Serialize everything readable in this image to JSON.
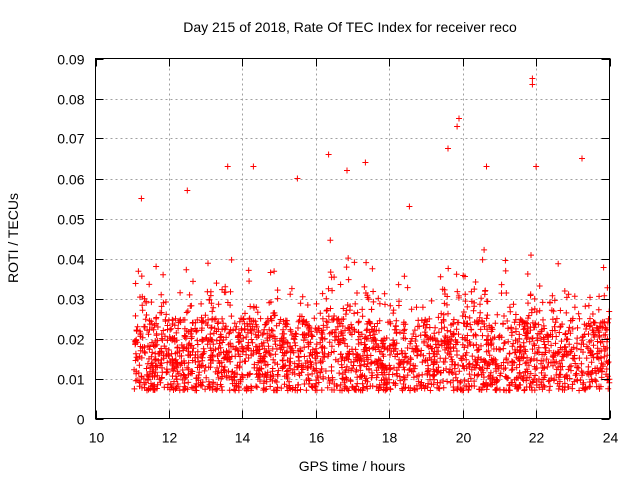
{
  "chart_data": {
    "type": "scatter",
    "title": "Day 215 of 2018, Rate Of TEC Index for receiver reco",
    "xlabel": "GPS time / hours",
    "ylabel": "ROTI / TECUs",
    "xlim": [
      10,
      24
    ],
    "ylim": [
      0,
      0.09
    ],
    "x_ticks": [
      10,
      12,
      14,
      16,
      18,
      20,
      22,
      24
    ],
    "y_ticks": [
      0,
      0.01,
      0.02,
      0.03,
      0.04,
      0.05,
      0.06,
      0.07,
      0.08,
      0.09
    ],
    "y_tick_labels": [
      "0",
      "0.01",
      "0.02",
      "0.03",
      "0.04",
      "0.05",
      "0.06",
      "0.07",
      "0.08",
      "0.09"
    ],
    "grid": true,
    "marker": "plus",
    "marker_color": "#ff0000",
    "series_note": "Dense cloud of ROTI samples from ~11.05 h to 24 h, mostly 0.005-0.03 TECU/min",
    "data_range": {
      "x_start": 11.05,
      "x_end": 24.0,
      "y_min": 0.005,
      "y_max": 0.085
    },
    "notable_points": [
      {
        "x": 21.9,
        "y": 0.085
      },
      {
        "x": 21.9,
        "y": 0.0835
      },
      {
        "x": 19.9,
        "y": 0.075
      },
      {
        "x": 19.85,
        "y": 0.073
      },
      {
        "x": 19.6,
        "y": 0.0675
      },
      {
        "x": 23.25,
        "y": 0.065
      },
      {
        "x": 16.35,
        "y": 0.066
      },
      {
        "x": 14.3,
        "y": 0.063
      },
      {
        "x": 13.6,
        "y": 0.063
      },
      {
        "x": 20.65,
        "y": 0.063
      },
      {
        "x": 17.35,
        "y": 0.064
      },
      {
        "x": 16.85,
        "y": 0.062
      },
      {
        "x": 22.0,
        "y": 0.063
      },
      {
        "x": 15.5,
        "y": 0.06
      },
      {
        "x": 12.5,
        "y": 0.057
      },
      {
        "x": 11.25,
        "y": 0.055
      },
      {
        "x": 18.55,
        "y": 0.053
      }
    ]
  }
}
